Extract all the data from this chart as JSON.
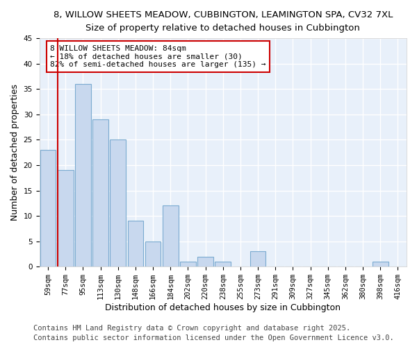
{
  "title_line1": "8, WILLOW SHEETS MEADOW, CUBBINGTON, LEAMINGTON SPA, CV32 7XL",
  "title_line2": "Size of property relative to detached houses in Cubbington",
  "xlabel": "Distribution of detached houses by size in Cubbington",
  "ylabel": "Number of detached properties",
  "bar_labels": [
    "59sqm",
    "77sqm",
    "95sqm",
    "113sqm",
    "130sqm",
    "148sqm",
    "166sqm",
    "184sqm",
    "202sqm",
    "220sqm",
    "238sqm",
    "255sqm",
    "273sqm",
    "291sqm",
    "309sqm",
    "327sqm",
    "345sqm",
    "362sqm",
    "380sqm",
    "398sqm",
    "416sqm"
  ],
  "bar_values": [
    23,
    19,
    36,
    29,
    25,
    9,
    5,
    12,
    1,
    2,
    1,
    0,
    3,
    0,
    0,
    0,
    0,
    0,
    0,
    1,
    0
  ],
  "bar_color": "#c8d8ee",
  "bar_edge_color": "#7aaad0",
  "vline_x": 1,
  "vline_color": "#cc0000",
  "annotation_text": "8 WILLOW SHEETS MEADOW: 84sqm\n← 18% of detached houses are smaller (30)\n82% of semi-detached houses are larger (135) →",
  "annotation_box_color": "#ffffff",
  "annotation_box_edge": "#cc0000",
  "ylim": [
    0,
    45
  ],
  "yticks": [
    0,
    5,
    10,
    15,
    20,
    25,
    30,
    35,
    40,
    45
  ],
  "bg_color": "#ffffff",
  "plot_bg_color": "#e8f0fa",
  "footer_line1": "Contains HM Land Registry data © Crown copyright and database right 2025.",
  "footer_line2": "Contains public sector information licensed under the Open Government Licence v3.0.",
  "title_fontsize": 9.5,
  "subtitle_fontsize": 8.8,
  "axis_label_fontsize": 9,
  "tick_fontsize": 7.5,
  "annotation_fontsize": 8,
  "footer_fontsize": 7.5
}
